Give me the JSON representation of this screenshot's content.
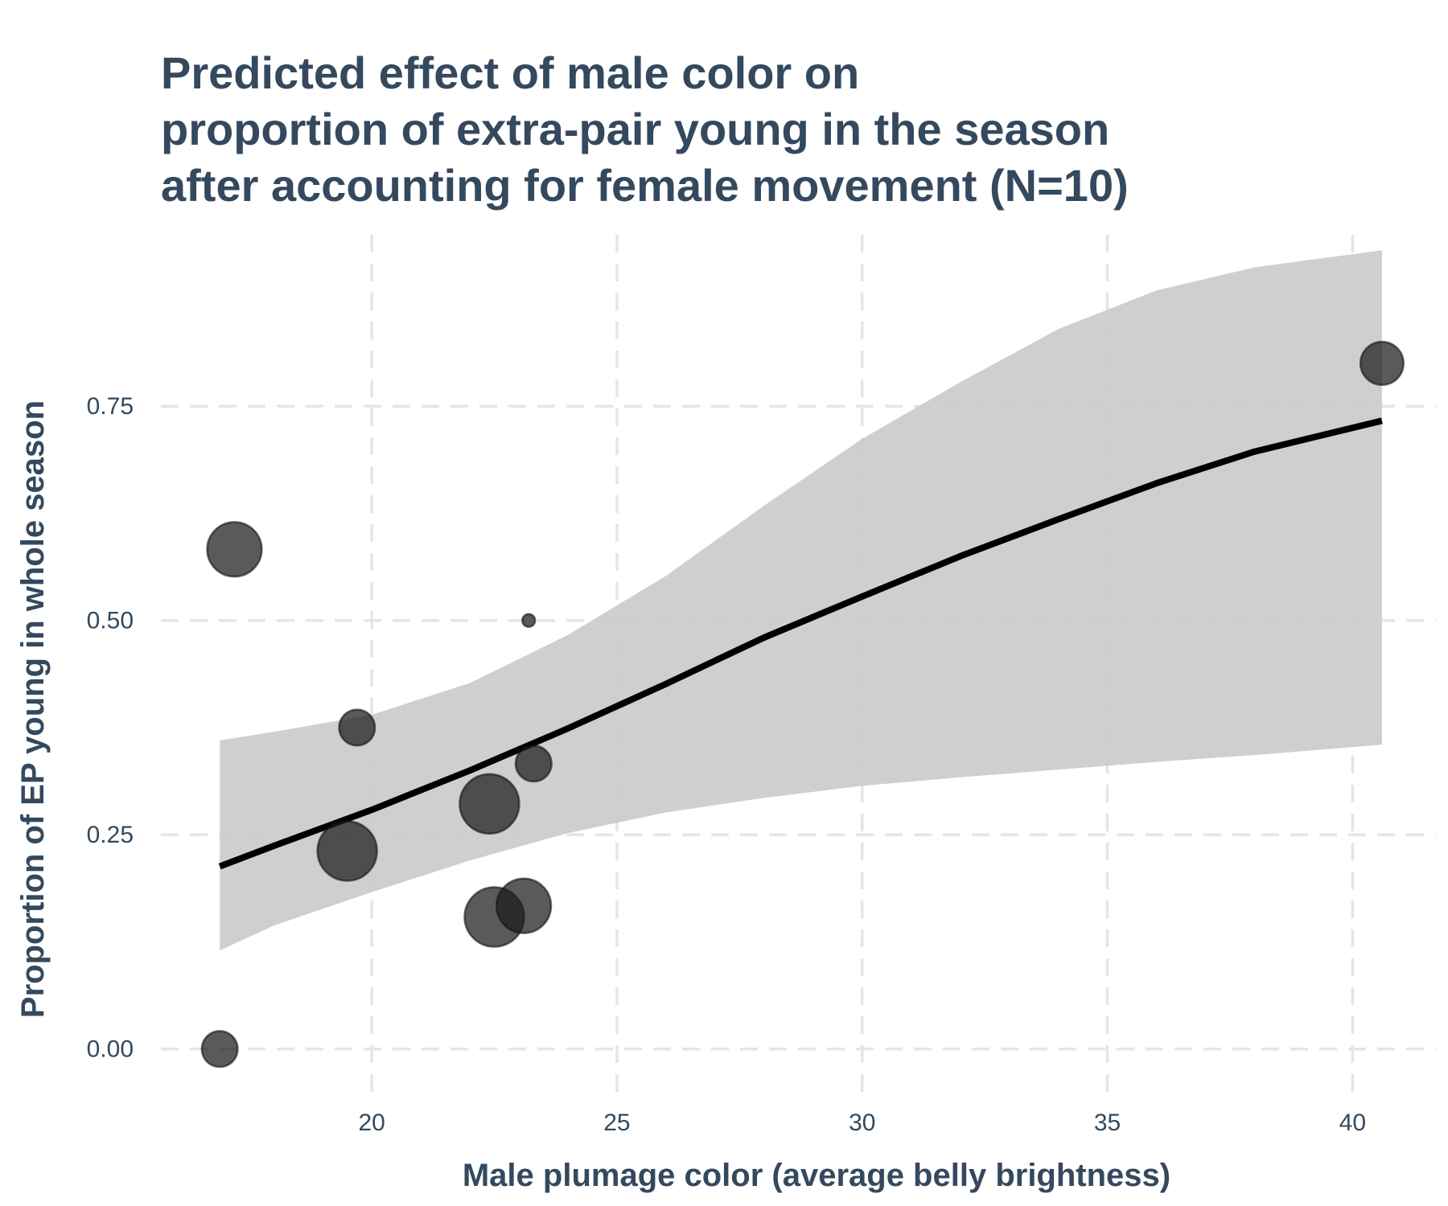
{
  "chart_data": {
    "type": "scatter",
    "title_lines": [
      "Predicted effect of male color on",
      "proportion of extra-pair young in the season",
      "after accounting for female movement (N=10)"
    ],
    "xlabel": "Male plumage color (average belly brightness)",
    "ylabel": "Proportion of EP young in whole season",
    "xlim": [
      15.7,
      41.7
    ],
    "ylim": [
      -0.05,
      0.95
    ],
    "x_ticks": [
      20,
      25,
      30,
      35,
      40
    ],
    "x_tick_labels": [
      "20",
      "25",
      "30",
      "35",
      "40"
    ],
    "y_ticks": [
      0,
      0.25,
      0.5,
      0.75
    ],
    "y_tick_labels": [
      "0.00",
      "0.25",
      "0.50",
      "0.75"
    ],
    "grid": true,
    "grid_style": "dashed",
    "legend": "none",
    "points": [
      {
        "x": 16.9,
        "y": 0.0,
        "size": 3
      },
      {
        "x": 17.2,
        "y": 0.583,
        "size": 6
      },
      {
        "x": 19.5,
        "y": 0.231,
        "size": 7
      },
      {
        "x": 19.7,
        "y": 0.375,
        "size": 3
      },
      {
        "x": 22.4,
        "y": 0.286,
        "size": 7
      },
      {
        "x": 22.5,
        "y": 0.154,
        "size": 7
      },
      {
        "x": 23.1,
        "y": 0.167,
        "size": 6
      },
      {
        "x": 23.2,
        "y": 0.5,
        "size": 1
      },
      {
        "x": 23.3,
        "y": 0.333,
        "size": 3
      },
      {
        "x": 40.6,
        "y": 0.8,
        "size": 4
      }
    ],
    "fit_line": {
      "x": [
        16.9,
        18,
        20,
        22,
        24,
        26,
        28,
        30,
        32,
        34,
        36,
        38,
        40.6
      ],
      "y": [
        0.213,
        0.237,
        0.279,
        0.325,
        0.374,
        0.426,
        0.48,
        0.528,
        0.575,
        0.618,
        0.66,
        0.697,
        0.733
      ]
    },
    "confidence_band": {
      "x": [
        16.9,
        18,
        20,
        22,
        24,
        26,
        28,
        30,
        32,
        34,
        36,
        38,
        40.6
      ],
      "lower": [
        0.115,
        0.144,
        0.183,
        0.22,
        0.252,
        0.276,
        0.293,
        0.307,
        0.317,
        0.326,
        0.335,
        0.343,
        0.355
      ],
      "upper": [
        0.36,
        0.37,
        0.39,
        0.427,
        0.483,
        0.552,
        0.634,
        0.712,
        0.778,
        0.84,
        0.885,
        0.912,
        0.932
      ]
    },
    "colors": {
      "points": "#1a1a1a",
      "point_opacity": 0.72,
      "fit_line": "#000000",
      "band": "#cccccc",
      "grid": "#e5e5e5",
      "text": "#34495e"
    }
  }
}
